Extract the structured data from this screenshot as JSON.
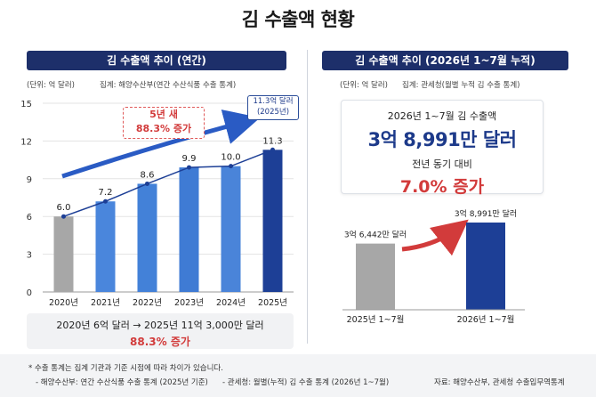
{
  "page": {
    "title": "김 수출액 현황"
  },
  "left_panel": {
    "header": "김 수출액 추이 (연간)",
    "unit": "(단위: 억 달러)",
    "source": "집계: 해양수산부(연간 수산식품 수출 통계)",
    "callout_growth": {
      "line1": "5년 새",
      "line2": "88.3% 증가"
    },
    "callout_latest": {
      "line1": "11.3억 달러",
      "line2": "(2025년)"
    },
    "summary": {
      "line1": "2020년 6억 달러 → 2025년 11억 3,000만 달러",
      "line2": "88.3% 증가"
    }
  },
  "right_panel": {
    "header": "김 수출액 추이 (2026년 1~7월 누적)",
    "unit": "(단위: 억 달러)",
    "source": "집계: 관세청(월별 누적 김 수출 통계)",
    "kpi": {
      "label": "2026년 1~7월 김 수출액",
      "value": "3억 8,991만 달러",
      "compare_label": "전년 동기 대비",
      "compare_value": "7.0% 증가"
    }
  },
  "footer": {
    "note": "* 수출 통계는 집계 기관과 기준 시점에 따라 차이가 있습니다.",
    "source_left": "- 해양수산부: 연간 수산식품 수출 통계 (2025년 기준)",
    "source_mid": "- 관세청: 월별(누적) 김 수출 통계 (2026년 1~7월)",
    "source_right": "자료: 해양수산부, 관세청 수출입무역통계"
  },
  "colors": {
    "navy": "#1d2f6a",
    "gray_bar": "#a7a7a7",
    "blue_mid": "#4a82d6",
    "blue_dark": "#1d3f96",
    "red": "#d23b3b"
  },
  "chart_data": [
    {
      "type": "bar",
      "categories": [
        "2020년",
        "2021년",
        "2022년",
        "2023년",
        "2024년",
        "2025년"
      ],
      "values": [
        6.0,
        7.2,
        8.6,
        9.9,
        10.0,
        11.3
      ],
      "data_labels": [
        "6.0",
        "7.2",
        "8.6",
        "9.9",
        "10.0",
        "11.3"
      ],
      "ylim": [
        0,
        15
      ],
      "yticks": [
        0,
        3,
        6,
        9,
        12,
        15
      ],
      "grid": true,
      "trend_line": true
    },
    {
      "type": "bar",
      "categories": [
        "2025년 1~7월",
        "2026년 1~7월"
      ],
      "values": [
        3.6442,
        3.8991
      ],
      "data_labels": [
        "3억 6,442만 달러",
        "3억 8,991만 달러"
      ],
      "grid": false
    }
  ]
}
